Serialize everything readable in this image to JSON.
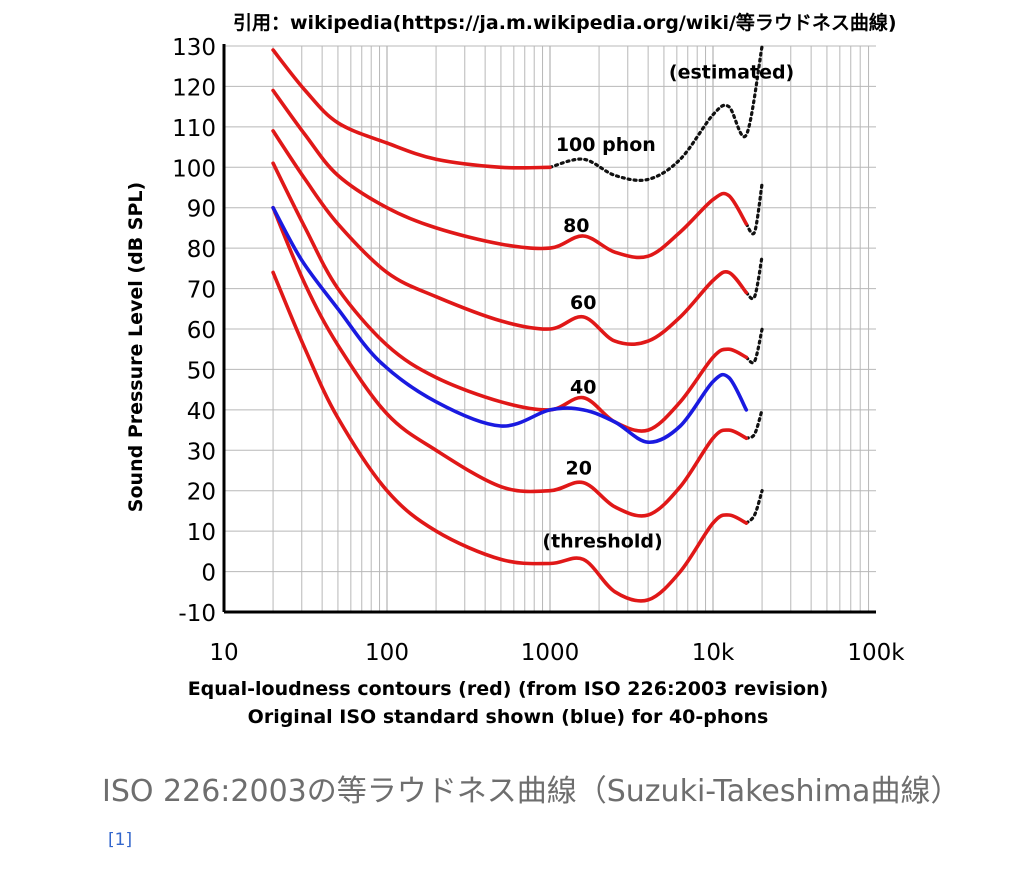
{
  "source_note": "引用：wikipedia(https://ja.m.wikipedia.org/wiki/等ラウドネス曲線)",
  "caption": {
    "text": "ISO 226:2003の等ラウドネス曲線（Suzuki-Takeshima曲線）",
    "ref": "[1]"
  },
  "colors": {
    "iso2003": "#e01818",
    "original": "#1a1ae0",
    "estimated": "#111111",
    "grid": "#b8b8b8",
    "axis": "#000000"
  },
  "chart_data": {
    "type": "line",
    "xscale": "log",
    "xlim": [
      10,
      100000
    ],
    "ylim": [
      -10,
      130
    ],
    "xticks": [
      {
        "v": 10,
        "label": "10"
      },
      {
        "v": 100,
        "label": "100"
      },
      {
        "v": 1000,
        "label": "1000"
      },
      {
        "v": 10000,
        "label": "10k"
      },
      {
        "v": 100000,
        "label": "100k"
      }
    ],
    "yticks": [
      {
        "v": 130,
        "label": "130"
      },
      {
        "v": 120,
        "label": "120"
      },
      {
        "v": 110,
        "label": "110"
      },
      {
        "v": 100,
        "label": "100"
      },
      {
        "v": 90,
        "label": "90"
      },
      {
        "v": 80,
        "label": "80"
      },
      {
        "v": 70,
        "label": "70"
      },
      {
        "v": 60,
        "label": "60"
      },
      {
        "v": 50,
        "label": "50"
      },
      {
        "v": 40,
        "label": "40"
      },
      {
        "v": 30,
        "label": "30"
      },
      {
        "v": 20,
        "label": "20"
      },
      {
        "v": 10,
        "label": "10"
      },
      {
        "v": 0,
        "label": "0"
      },
      {
        "v": -10,
        "label": "-10"
      }
    ],
    "ylabel": "Sound Pressure Level (dB SPL)",
    "xlabel": [
      "Equal-loudness contours (red) (from ISO 226:2003 revision)",
      "Original ISO standard shown (blue) for 40-phons"
    ],
    "grid": true,
    "series": [
      {
        "name": "threshold",
        "style": "iso2003",
        "x": [
          20,
          31.5,
          50,
          100,
          200,
          500,
          1000,
          1600,
          2500,
          4000,
          6300,
          10000,
          12500,
          16000
        ],
        "y": [
          74,
          55,
          38,
          20,
          10,
          3,
          2,
          3,
          -5,
          -7,
          0,
          12,
          14,
          12
        ]
      },
      {
        "name": "20 phon",
        "style": "iso2003",
        "x": [
          20,
          31.5,
          50,
          100,
          200,
          500,
          1000,
          1600,
          2500,
          4000,
          6300,
          10000,
          12500,
          16000
        ],
        "y": [
          90,
          71,
          56,
          39,
          30,
          21,
          20,
          22,
          16,
          14,
          21,
          33,
          35,
          33
        ]
      },
      {
        "name": "40 phon",
        "style": "iso2003",
        "x": [
          20,
          31.5,
          50,
          100,
          200,
          500,
          1000,
          1600,
          2500,
          4000,
          6300,
          10000,
          12500,
          16000
        ],
        "y": [
          101,
          85,
          70,
          56,
          48,
          42,
          40,
          43,
          37,
          35,
          42,
          53,
          55,
          53
        ]
      },
      {
        "name": "60 phon",
        "style": "iso2003",
        "x": [
          20,
          31.5,
          50,
          100,
          200,
          500,
          1000,
          1600,
          2500,
          4000,
          6300,
          10000,
          12500,
          16000
        ],
        "y": [
          109,
          97,
          86,
          74,
          68,
          62,
          60,
          63,
          57,
          57,
          63,
          72,
          74,
          69
        ]
      },
      {
        "name": "80 phon",
        "style": "iso2003",
        "x": [
          20,
          31.5,
          50,
          100,
          200,
          500,
          1000,
          1600,
          2500,
          4000,
          6300,
          10000,
          12500,
          16000
        ],
        "y": [
          119,
          108,
          98,
          90,
          85,
          81,
          80,
          83,
          79,
          78,
          84,
          92,
          93,
          86
        ]
      },
      {
        "name": "100 phon",
        "style": "iso2003",
        "x": [
          20,
          31.5,
          50,
          100,
          200,
          500,
          1000
        ],
        "y": [
          129,
          119,
          111,
          106,
          102,
          100,
          100
        ]
      },
      {
        "name": "100 phon (estimated)",
        "style": "estimated",
        "x": [
          1000,
          1600,
          2500,
          4000,
          6300,
          10000,
          12500,
          16000,
          20000
        ],
        "y": [
          100,
          102,
          98,
          97,
          102,
          113,
          115,
          108,
          130
        ]
      },
      {
        "name": "80 (estimated)",
        "style": "estimated",
        "x": [
          16000,
          18000,
          20000
        ],
        "y": [
          86,
          84,
          96
        ]
      },
      {
        "name": "60 (estimated)",
        "style": "estimated",
        "x": [
          16000,
          18000,
          20000
        ],
        "y": [
          69,
          68,
          78
        ]
      },
      {
        "name": "40 (estimated)",
        "style": "estimated",
        "x": [
          16000,
          18000,
          20000
        ],
        "y": [
          53,
          52,
          60
        ]
      },
      {
        "name": "20 (estimated)",
        "style": "estimated",
        "x": [
          16000,
          18000,
          20000
        ],
        "y": [
          33,
          34,
          40
        ]
      },
      {
        "name": "threshold (estimated)",
        "style": "estimated",
        "x": [
          16000,
          18000,
          20000
        ],
        "y": [
          12,
          14,
          20
        ]
      },
      {
        "name": "original 40 phon",
        "style": "original",
        "x": [
          20,
          30,
          50,
          90,
          200,
          500,
          1000,
          1600,
          2500,
          4000,
          6300,
          10000,
          12500,
          16000
        ],
        "y": [
          90,
          77,
          65,
          52,
          42,
          36,
          40,
          40,
          37,
          32,
          36,
          47,
          48,
          40
        ]
      }
    ],
    "annotations": [
      {
        "text": "(estimated)",
        "x": 13000,
        "y": 122
      },
      {
        "text": "100 phon",
        "x": 2200,
        "y": 104
      },
      {
        "text": "80",
        "x": 1450,
        "y": 84
      },
      {
        "text": "60",
        "x": 1600,
        "y": 65
      },
      {
        "text": "40",
        "x": 1600,
        "y": 44
      },
      {
        "text": "20",
        "x": 1500,
        "y": 24
      },
      {
        "text": "(threshold)",
        "x": 2100,
        "y": 6
      }
    ]
  }
}
